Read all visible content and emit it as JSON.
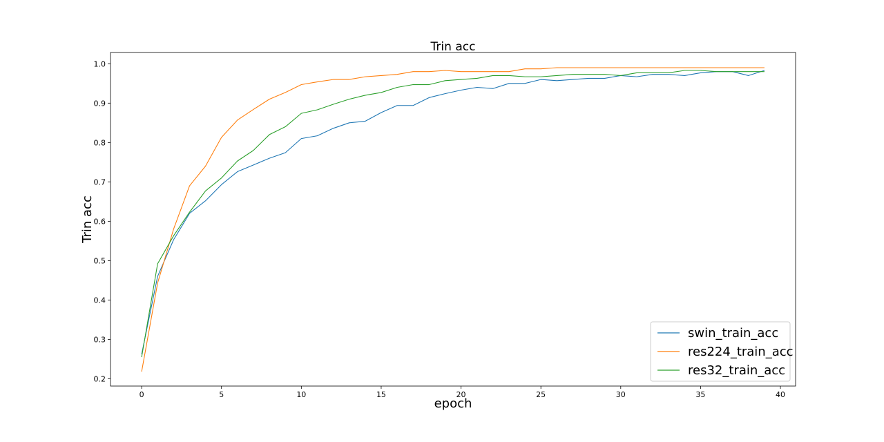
{
  "chart_data": {
    "type": "line",
    "title": "Trin acc",
    "xlabel": "epoch",
    "ylabel": "Trin acc",
    "xlim": [
      -1.95,
      40.95
    ],
    "ylim": [
      0.1814,
      1.0286
    ],
    "xticks": [
      0,
      5,
      10,
      15,
      20,
      25,
      30,
      35,
      40
    ],
    "yticks": [
      0.2,
      0.3,
      0.4,
      0.5,
      0.6,
      0.7,
      0.8,
      0.9,
      1.0
    ],
    "ytick_labels": [
      "0.2",
      "0.3",
      "0.4",
      "0.5",
      "0.6",
      "0.7",
      "0.8",
      "0.9",
      "1.0"
    ],
    "grid": false,
    "legend_position": "lower-right",
    "x": [
      0,
      1,
      2,
      3,
      4,
      5,
      6,
      7,
      8,
      9,
      10,
      11,
      12,
      13,
      14,
      15,
      16,
      17,
      18,
      19,
      20,
      21,
      22,
      23,
      24,
      25,
      26,
      27,
      28,
      29,
      30,
      31,
      32,
      33,
      34,
      35,
      36,
      37,
      38,
      39
    ],
    "series": [
      {
        "name": "swin_train_acc",
        "color": "#1f77b4",
        "values": [
          0.262,
          0.46,
          0.553,
          0.62,
          0.652,
          0.693,
          0.726,
          0.743,
          0.76,
          0.774,
          0.81,
          0.817,
          0.836,
          0.85,
          0.854,
          0.876,
          0.894,
          0.894,
          0.914,
          0.924,
          0.933,
          0.94,
          0.937,
          0.95,
          0.95,
          0.96,
          0.957,
          0.96,
          0.963,
          0.963,
          0.97,
          0.967,
          0.973,
          0.973,
          0.97,
          0.977,
          0.98,
          0.98,
          0.97,
          0.983
        ]
      },
      {
        "name": "res224_train_acc",
        "color": "#ff7f0e",
        "values": [
          0.218,
          0.443,
          0.58,
          0.69,
          0.74,
          0.813,
          0.857,
          0.884,
          0.91,
          0.927,
          0.947,
          0.954,
          0.96,
          0.96,
          0.967,
          0.97,
          0.973,
          0.98,
          0.98,
          0.983,
          0.98,
          0.98,
          0.98,
          0.98,
          0.987,
          0.987,
          0.99,
          0.99,
          0.99,
          0.99,
          0.99,
          0.99,
          0.99,
          0.99,
          0.99,
          0.99,
          0.99,
          0.99,
          0.99,
          0.99
        ]
      },
      {
        "name": "res32_train_acc",
        "color": "#2ca02c",
        "values": [
          0.255,
          0.492,
          0.563,
          0.623,
          0.677,
          0.71,
          0.753,
          0.78,
          0.82,
          0.84,
          0.874,
          0.883,
          0.897,
          0.91,
          0.92,
          0.927,
          0.94,
          0.947,
          0.947,
          0.957,
          0.96,
          0.963,
          0.97,
          0.97,
          0.967,
          0.967,
          0.97,
          0.973,
          0.973,
          0.973,
          0.97,
          0.977,
          0.977,
          0.977,
          0.983,
          0.983,
          0.98,
          0.98,
          0.98,
          0.98
        ]
      }
    ]
  }
}
